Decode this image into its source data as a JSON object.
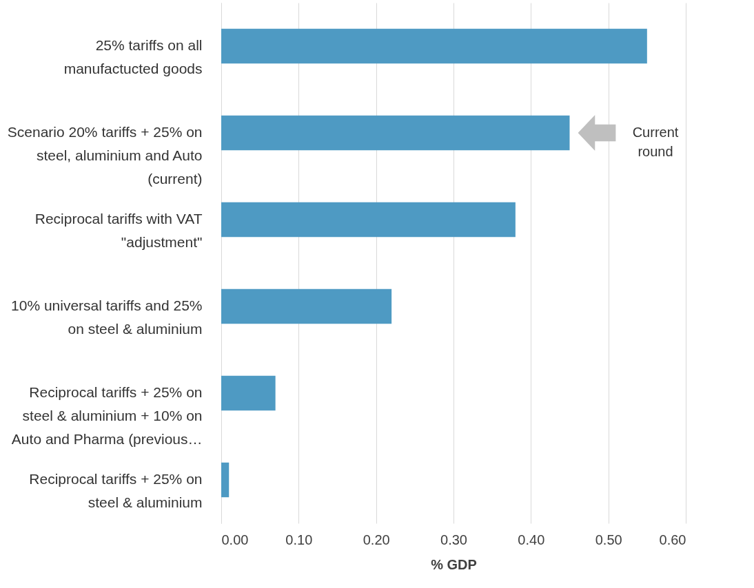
{
  "chart_data": {
    "type": "bar",
    "orientation": "horizontal",
    "categories": [
      "25% tariffs on all manufactucted goods",
      "Scenario 20% tariffs + 25% on steel, aluminium and Auto (current)",
      "Reciprocal tariffs with VAT \"adjustment\"",
      "10% universal tariffs and 25% on steel & aluminium",
      "Reciprocal tariffs + 25% on steel & aluminium + 10% on Auto and Pharma (previous…",
      "Reciprocal tariffs + 25% on steel & aluminium"
    ],
    "values": [
      0.55,
      0.45,
      0.38,
      0.22,
      0.07,
      0.01
    ],
    "color": "#4e9ac3",
    "xlim": [
      0,
      0.6
    ],
    "xticks": [
      {
        "value": 0,
        "label": "0.00"
      },
      {
        "value": 0.1,
        "label": "0.10"
      },
      {
        "value": 0.2,
        "label": "0.20"
      },
      {
        "value": 0.3,
        "label": "0.30"
      },
      {
        "value": 0.4,
        "label": "0.40"
      },
      {
        "value": 0.5,
        "label": "0.50"
      },
      {
        "value": 0.6,
        "label": "0.60"
      }
    ],
    "xlabel": "% GDP",
    "grid": "x",
    "annotations": [
      "Current round"
    ]
  }
}
